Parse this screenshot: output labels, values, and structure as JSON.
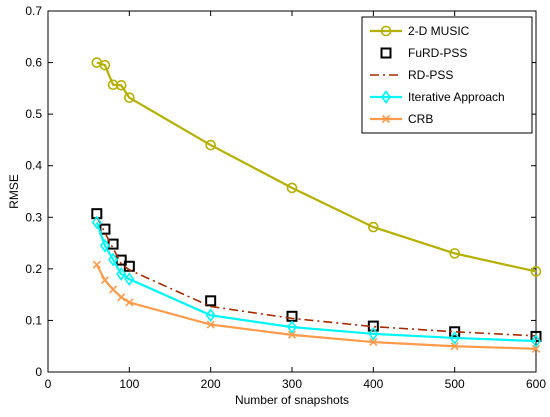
{
  "chart_data": {
    "type": "line",
    "xlabel": "Number of snapshots",
    "ylabel": "RMSE",
    "xlim": [
      0,
      600
    ],
    "ylim": [
      0,
      0.7
    ],
    "xticks": [
      0,
      100,
      200,
      300,
      400,
      500,
      600
    ],
    "yticks": [
      0,
      0.1,
      0.2,
      0.3,
      0.4,
      0.5,
      0.6,
      0.7
    ],
    "xtick_labels": [
      "0",
      "100",
      "200",
      "300",
      "400",
      "500",
      "600"
    ],
    "ytick_labels": [
      "0",
      "0.1",
      "0.2",
      "0.3",
      "0.4",
      "0.5",
      "0.6",
      "0.7"
    ],
    "grid": false,
    "legend_position": "top-right",
    "series": [
      {
        "name": "2-D MUSIC",
        "color": "#b5b000",
        "line": "solid",
        "marker": "circle",
        "x": [
          60,
          70,
          80,
          90,
          100,
          200,
          300,
          400,
          500,
          600
        ],
        "y": [
          0.6,
          0.595,
          0.557,
          0.556,
          0.532,
          0.44,
          0.357,
          0.281,
          0.23,
          0.195
        ]
      },
      {
        "name": "FuRD-PSS",
        "color": "#000000",
        "line": "none",
        "marker": "square",
        "x": [
          60,
          70,
          80,
          90,
          100,
          200,
          300,
          400,
          500,
          600
        ],
        "y": [
          0.307,
          0.277,
          0.248,
          0.217,
          0.205,
          0.138,
          0.108,
          0.089,
          0.078,
          0.069
        ]
      },
      {
        "name": "RD-PSS",
        "color": "#a52a00",
        "line": "dashdot",
        "marker": "none",
        "x": [
          60,
          70,
          80,
          90,
          100,
          200,
          300,
          400,
          500,
          600
        ],
        "y": [
          0.301,
          0.27,
          0.24,
          0.21,
          0.198,
          0.127,
          0.104,
          0.088,
          0.078,
          0.07
        ]
      },
      {
        "name": "Iterative Approach",
        "color": "#00f5f5",
        "line": "solid",
        "marker": "diamond",
        "x": [
          60,
          70,
          80,
          90,
          100,
          200,
          300,
          400,
          500,
          600
        ],
        "y": [
          0.29,
          0.245,
          0.218,
          0.19,
          0.18,
          0.11,
          0.087,
          0.074,
          0.066,
          0.06
        ]
      },
      {
        "name": "CRB",
        "color": "#ff9a4a",
        "line": "solid",
        "marker": "x",
        "x": [
          60,
          70,
          80,
          90,
          100,
          200,
          300,
          400,
          500,
          600
        ],
        "y": [
          0.208,
          0.178,
          0.16,
          0.145,
          0.135,
          0.092,
          0.072,
          0.058,
          0.05,
          0.045
        ]
      }
    ]
  }
}
